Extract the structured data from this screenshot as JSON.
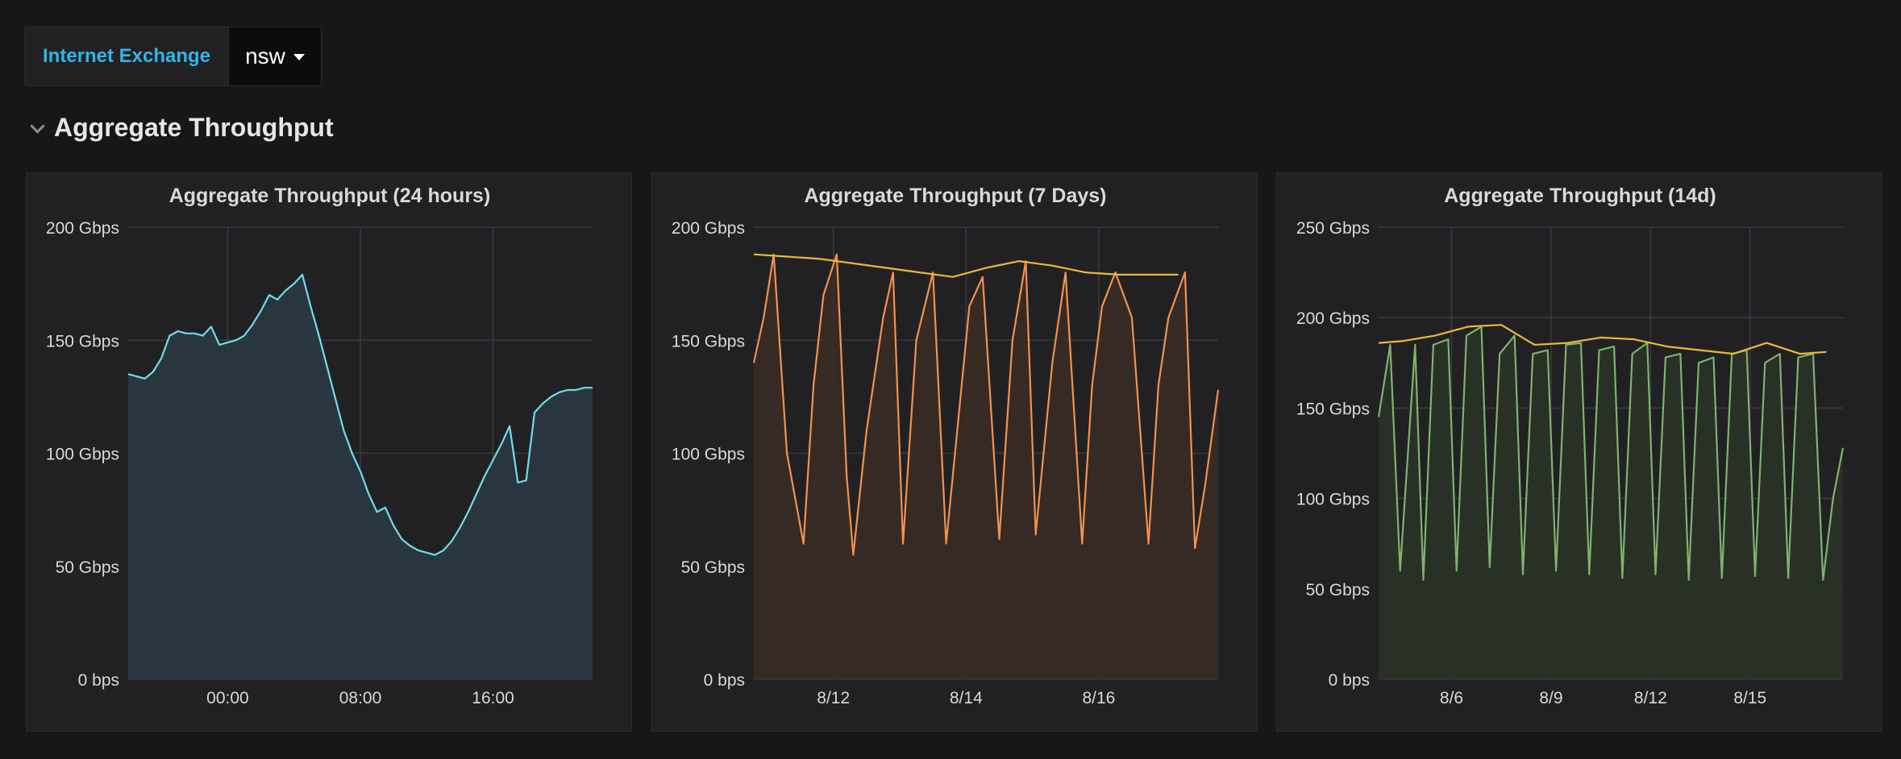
{
  "variable": {
    "label": "Internet Exchange",
    "value": "nsw"
  },
  "row": {
    "title": "Aggregate Throughput"
  },
  "chart_data": [
    {
      "type": "area",
      "title": "Aggregate Throughput (24 hours)",
      "xlabel": "",
      "ylabel": "",
      "xlim": [
        -6,
        22
      ],
      "ylim": [
        0,
        200
      ],
      "y_ticks": [
        0,
        50,
        100,
        150,
        200
      ],
      "y_tick_labels": [
        "0 bps",
        "50 Gbps",
        "100 Gbps",
        "150 Gbps",
        "200 Gbps"
      ],
      "x_ticks": [
        0,
        8,
        16
      ],
      "x_tick_labels": [
        "00:00",
        "08:00",
        "16:00"
      ],
      "grid": true,
      "legend": "none",
      "series": [
        {
          "color": "#70dbed",
          "fill": "#2a3a44",
          "x": [
            -6,
            -5.5,
            -5,
            -4.5,
            -4,
            -3.5,
            -3,
            -2.5,
            -2,
            -1.5,
            -1,
            -0.5,
            0,
            0.5,
            1,
            1.5,
            2,
            2.5,
            3,
            3.5,
            4,
            4.5,
            5,
            5.5,
            6,
            6.5,
            7,
            7.5,
            8,
            8.5,
            9,
            9.5,
            10,
            10.5,
            11,
            11.5,
            12,
            12.5,
            13,
            13.5,
            14,
            14.5,
            15,
            15.5,
            16,
            16.5,
            17,
            17.5,
            18,
            18.5,
            19,
            19.5,
            20,
            20.5,
            21,
            21.5,
            22
          ],
          "values": [
            135,
            134,
            133,
            136,
            142,
            152,
            154,
            153,
            153,
            152,
            156,
            148,
            149,
            150,
            152,
            157,
            163,
            170,
            168,
            172,
            175,
            179,
            165,
            152,
            138,
            124,
            110,
            100,
            92,
            82,
            74,
            76,
            68,
            62,
            59,
            57,
            56,
            55,
            57,
            61,
            67,
            74,
            82,
            90,
            97,
            104,
            112,
            87,
            88,
            118,
            122,
            125,
            127,
            128,
            128,
            129,
            129
          ]
        }
      ]
    },
    {
      "type": "line",
      "title": "Aggregate Throughput (7 Days)",
      "xlabel": "",
      "ylabel": "",
      "xlim": [
        9.8,
        16.8
      ],
      "ylim": [
        0,
        200
      ],
      "y_ticks": [
        0,
        50,
        100,
        150,
        200
      ],
      "y_tick_labels": [
        "0 bps",
        "50 Gbps",
        "100 Gbps",
        "150 Gbps",
        "200 Gbps"
      ],
      "x_ticks": [
        11,
        13,
        15
      ],
      "x_tick_labels": [
        "8/12",
        "8/14",
        "8/16"
      ],
      "grid": true,
      "legend": "none",
      "series": [
        {
          "color": "#f2914d",
          "fill": "#3a2b24",
          "x": [
            9.8,
            9.95,
            10.1,
            10.3,
            10.55,
            10.7,
            10.85,
            11.05,
            11.2,
            11.3,
            11.5,
            11.75,
            11.9,
            12.05,
            12.25,
            12.5,
            12.7,
            12.9,
            13.05,
            13.25,
            13.5,
            13.7,
            13.9,
            14.05,
            14.3,
            14.5,
            14.75,
            14.9,
            15.05,
            15.25,
            15.5,
            15.75,
            15.9,
            16.05,
            16.3,
            16.45,
            16.6,
            16.8
          ],
          "values": [
            140,
            160,
            188,
            100,
            60,
            130,
            170,
            188,
            90,
            55,
            110,
            160,
            180,
            60,
            150,
            180,
            60,
            120,
            165,
            178,
            62,
            150,
            185,
            64,
            140,
            180,
            60,
            130,
            165,
            180,
            160,
            60,
            130,
            160,
            180,
            58,
            85,
            128
          ]
        },
        {
          "color": "#eab839",
          "x": [
            9.8,
            10.3,
            10.8,
            11.3,
            11.8,
            12.3,
            12.8,
            13.3,
            13.8,
            14.3,
            14.8,
            15.3,
            15.8,
            16.2
          ],
          "values": [
            188,
            187,
            186,
            184,
            182,
            180,
            178,
            182,
            185,
            183,
            180,
            179,
            179,
            179
          ]
        }
      ]
    },
    {
      "type": "line",
      "title": "Aggregate Throughput (14d)",
      "xlabel": "",
      "ylabel": "",
      "xlim": [
        3.8,
        17.8
      ],
      "ylim": [
        0,
        250
      ],
      "y_ticks": [
        0,
        50,
        100,
        150,
        200,
        250
      ],
      "y_tick_labels": [
        "0 bps",
        "50 Gbps",
        "100 Gbps",
        "150 Gbps",
        "200 Gbps",
        "250 Gbps"
      ],
      "x_ticks": [
        6,
        9,
        12,
        15
      ],
      "x_tick_labels": [
        "8/6",
        "8/9",
        "8/12",
        "8/15"
      ],
      "grid": true,
      "legend": "none",
      "series": [
        {
          "color": "#7eb26d",
          "fill": "#2a3327",
          "x": [
            3.8,
            4.15,
            4.45,
            4.9,
            5.15,
            5.45,
            5.9,
            6.15,
            6.45,
            6.9,
            7.15,
            7.45,
            7.9,
            8.15,
            8.45,
            8.9,
            9.15,
            9.45,
            9.9,
            10.15,
            10.45,
            10.9,
            11.15,
            11.45,
            11.9,
            12.15,
            12.45,
            12.9,
            13.15,
            13.45,
            13.9,
            14.15,
            14.45,
            14.9,
            15.15,
            15.45,
            15.9,
            16.15,
            16.45,
            16.9,
            17.2,
            17.5,
            17.8
          ],
          "values": [
            145,
            185,
            60,
            185,
            55,
            185,
            188,
            60,
            190,
            195,
            62,
            180,
            190,
            58,
            180,
            182,
            60,
            185,
            186,
            58,
            182,
            184,
            56,
            180,
            186,
            58,
            178,
            180,
            55,
            175,
            178,
            56,
            180,
            182,
            57,
            175,
            180,
            56,
            178,
            180,
            55,
            100,
            128
          ]
        },
        {
          "color": "#eab839",
          "x": [
            3.8,
            4.5,
            5.5,
            6.5,
            7.5,
            8.5,
            9.5,
            10.5,
            11.5,
            12.5,
            13.5,
            14.5,
            15.5,
            16.5,
            17.3
          ],
          "values": [
            186,
            187,
            190,
            195,
            196,
            185,
            186,
            189,
            188,
            184,
            182,
            180,
            186,
            180,
            181
          ]
        }
      ]
    }
  ]
}
